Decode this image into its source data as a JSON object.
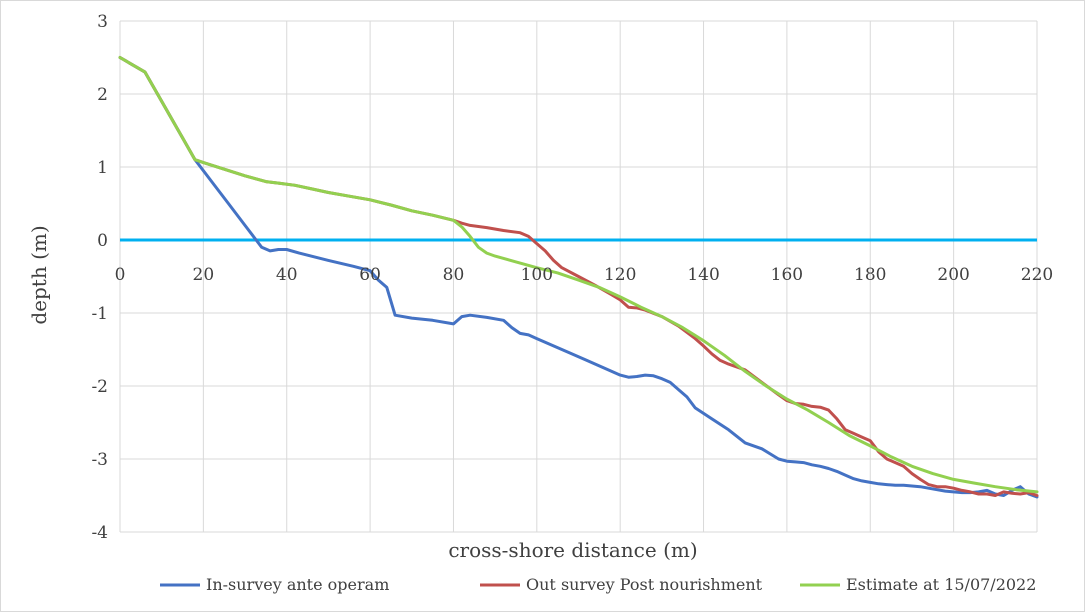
{
  "chart_data": {
    "type": "line",
    "title": "",
    "xlabel": "cross-shore distance (m)",
    "ylabel": "depth (m)",
    "xlim": [
      0,
      220
    ],
    "ylim": [
      -4,
      3
    ],
    "x_ticks": [
      "0",
      "20",
      "40",
      "60",
      "80",
      "100",
      "120",
      "140",
      "160",
      "180",
      "200",
      "220"
    ],
    "y_ticks": [
      "3",
      "2",
      "1",
      "0",
      "-1",
      "-2",
      "-3",
      "-4"
    ],
    "grid": true,
    "legend_position": "bottom",
    "reference_line": {
      "y": 0,
      "color": "#00b0f0"
    },
    "series": [
      {
        "name": "In-survey ante operam",
        "color": "#4472c4",
        "x": [
          0,
          3,
          6,
          9,
          12,
          15,
          18,
          22,
          26,
          30,
          34,
          36,
          38,
          40,
          43,
          50,
          56,
          60,
          62,
          64,
          66,
          70,
          75,
          80,
          82,
          84,
          88,
          92,
          94,
          96,
          98,
          100,
          104,
          108,
          112,
          116,
          120,
          122,
          124,
          126,
          128,
          130,
          132,
          134,
          136,
          138,
          142,
          146,
          150,
          154,
          156,
          158,
          160,
          162,
          164,
          166,
          168,
          170,
          172,
          174,
          176,
          178,
          180,
          182,
          184,
          186,
          188,
          190,
          192,
          194,
          196,
          198,
          200,
          202,
          204,
          206,
          208,
          210,
          212,
          214,
          216,
          218,
          220
        ],
        "y": [
          2.5,
          2.4,
          2.3,
          2.0,
          1.7,
          1.4,
          1.1,
          0.8,
          0.5,
          0.2,
          -0.1,
          -0.15,
          -0.13,
          -0.13,
          -0.18,
          -0.28,
          -0.36,
          -0.42,
          -0.55,
          -0.65,
          -1.03,
          -1.07,
          -1.1,
          -1.15,
          -1.05,
          -1.03,
          -1.06,
          -1.1,
          -1.2,
          -1.28,
          -1.3,
          -1.35,
          -1.45,
          -1.55,
          -1.65,
          -1.75,
          -1.85,
          -1.88,
          -1.87,
          -1.85,
          -1.86,
          -1.9,
          -1.95,
          -2.05,
          -2.15,
          -2.3,
          -2.45,
          -2.6,
          -2.78,
          -2.86,
          -2.93,
          -3.0,
          -3.03,
          -3.04,
          -3.05,
          -3.08,
          -3.1,
          -3.13,
          -3.17,
          -3.22,
          -3.27,
          -3.3,
          -3.32,
          -3.34,
          -3.35,
          -3.36,
          -3.36,
          -3.37,
          -3.38,
          -3.4,
          -3.42,
          -3.44,
          -3.45,
          -3.46,
          -3.46,
          -3.45,
          -3.43,
          -3.48,
          -3.5,
          -3.43,
          -3.38,
          -3.48,
          -3.52
        ]
      },
      {
        "name": "Out survey Post nourishment",
        "color": "#c0504d",
        "x": [
          0,
          3,
          6,
          9,
          12,
          15,
          18,
          20,
          25,
          30,
          35,
          38,
          42,
          46,
          50,
          55,
          60,
          65,
          70,
          75,
          80,
          82,
          84,
          88,
          92,
          96,
          98,
          100,
          102,
          104,
          106,
          110,
          114,
          118,
          120,
          122,
          124,
          126,
          130,
          134,
          138,
          140,
          142,
          144,
          146,
          150,
          154,
          158,
          160,
          162,
          164,
          166,
          168,
          170,
          172,
          174,
          176,
          178,
          180,
          182,
          184,
          186,
          188,
          190,
          192,
          194,
          196,
          198,
          200,
          202,
          204,
          206,
          208,
          210,
          212,
          214,
          216,
          218,
          220
        ],
        "y": [
          2.5,
          2.4,
          2.3,
          2.0,
          1.7,
          1.4,
          1.1,
          1.06,
          0.97,
          0.88,
          0.8,
          0.78,
          0.75,
          0.7,
          0.65,
          0.6,
          0.55,
          0.48,
          0.4,
          0.34,
          0.27,
          0.23,
          0.2,
          0.17,
          0.13,
          0.1,
          0.05,
          -0.05,
          -0.15,
          -0.28,
          -0.38,
          -0.5,
          -0.62,
          -0.75,
          -0.82,
          -0.92,
          -0.93,
          -0.96,
          -1.05,
          -1.18,
          -1.35,
          -1.45,
          -1.56,
          -1.65,
          -1.7,
          -1.78,
          -1.95,
          -2.12,
          -2.2,
          -2.24,
          -2.25,
          -2.28,
          -2.29,
          -2.33,
          -2.45,
          -2.6,
          -2.65,
          -2.7,
          -2.75,
          -2.9,
          -3.0,
          -3.05,
          -3.1,
          -3.2,
          -3.28,
          -3.35,
          -3.38,
          -3.38,
          -3.4,
          -3.43,
          -3.45,
          -3.48,
          -3.48,
          -3.5,
          -3.45,
          -3.47,
          -3.48,
          -3.46,
          -3.5
        ]
      },
      {
        "name": "Estimate at 15/07/2022",
        "color": "#92d050",
        "x": [
          0,
          3,
          6,
          9,
          12,
          15,
          18,
          20,
          25,
          30,
          35,
          38,
          42,
          46,
          50,
          55,
          60,
          65,
          70,
          75,
          80,
          82,
          84,
          86,
          88,
          90,
          95,
          100,
          105,
          110,
          115,
          120,
          125,
          130,
          135,
          140,
          145,
          150,
          155,
          160,
          165,
          170,
          175,
          180,
          185,
          190,
          195,
          200,
          205,
          210,
          215,
          220
        ],
        "y": [
          2.5,
          2.4,
          2.3,
          2.0,
          1.7,
          1.4,
          1.1,
          1.06,
          0.97,
          0.88,
          0.8,
          0.78,
          0.75,
          0.7,
          0.65,
          0.6,
          0.55,
          0.48,
          0.4,
          0.34,
          0.27,
          0.18,
          0.05,
          -0.1,
          -0.18,
          -0.22,
          -0.3,
          -0.38,
          -0.45,
          -0.55,
          -0.65,
          -0.78,
          -0.92,
          -1.05,
          -1.2,
          -1.38,
          -1.58,
          -1.8,
          -2.0,
          -2.18,
          -2.33,
          -2.5,
          -2.68,
          -2.82,
          -2.97,
          -3.1,
          -3.2,
          -3.28,
          -3.33,
          -3.38,
          -3.42,
          -3.45
        ]
      }
    ]
  }
}
